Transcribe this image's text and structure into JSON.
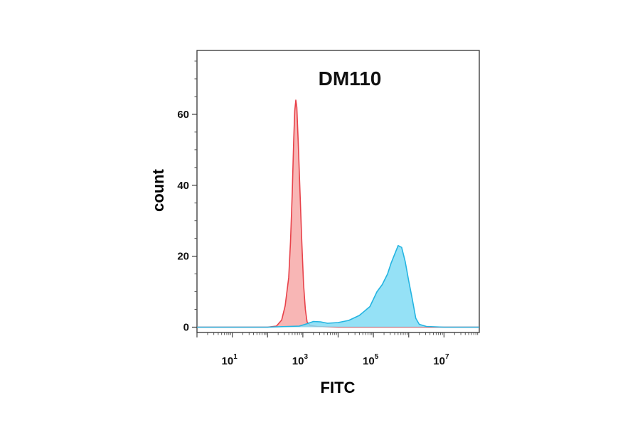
{
  "chart_data": {
    "type": "area",
    "title": "DM110",
    "xlabel": "FITC",
    "ylabel": "count",
    "x_scale": "log",
    "xlim": [
      1,
      100000000
    ],
    "ylim": [
      -1.5,
      78
    ],
    "x_ticks": [
      {
        "base": "10",
        "exp": "1",
        "value": 10
      },
      {
        "base": "10",
        "exp": "3",
        "value": 1000
      },
      {
        "base": "10",
        "exp": "5",
        "value": 100000
      },
      {
        "base": "10",
        "exp": "7",
        "value": 10000000
      }
    ],
    "y_ticks": [
      {
        "label": "0",
        "value": 0
      },
      {
        "label": "20",
        "value": 20
      },
      {
        "label": "40",
        "value": 40
      },
      {
        "label": "60",
        "value": 60
      }
    ],
    "series": [
      {
        "color_fill": "#f7a9a8",
        "color_line": "#e8424a",
        "points": [
          [
            1,
            0
          ],
          [
            10,
            0
          ],
          [
            100,
            0
          ],
          [
            178,
            0.3
          ],
          [
            251,
            2
          ],
          [
            316,
            6
          ],
          [
            398,
            14
          ],
          [
            447,
            24
          ],
          [
            501,
            38
          ],
          [
            548,
            52
          ],
          [
            589,
            61
          ],
          [
            631,
            64
          ],
          [
            676,
            62
          ],
          [
            741,
            52
          ],
          [
            832,
            38
          ],
          [
            933,
            24
          ],
          [
            1047,
            12
          ],
          [
            1175,
            5
          ],
          [
            1318,
            1.5
          ],
          [
            1585,
            0.5
          ],
          [
            2512,
            0.2
          ],
          [
            10000,
            0
          ],
          [
            100000,
            0
          ],
          [
            1000000,
            0
          ],
          [
            10000000,
            0
          ],
          [
            100000000,
            0
          ]
        ]
      },
      {
        "color_fill": "#83dcf4",
        "color_line": "#24b4e1",
        "points": [
          [
            1,
            0
          ],
          [
            10,
            0
          ],
          [
            100,
            0
          ],
          [
            794,
            0.3
          ],
          [
            1259,
            0.9
          ],
          [
            2000,
            1.6
          ],
          [
            3162,
            1.5
          ],
          [
            5012,
            1.1
          ],
          [
            10000,
            1.3
          ],
          [
            20000,
            1.9
          ],
          [
            39811,
            3.3
          ],
          [
            79433,
            5.8
          ],
          [
            125893,
            10
          ],
          [
            177828,
            12
          ],
          [
            251189,
            15
          ],
          [
            316228,
            18
          ],
          [
            398107,
            20.5
          ],
          [
            501187,
            23
          ],
          [
            630957,
            22.5
          ],
          [
            794328,
            18.5
          ],
          [
            1000000,
            13
          ],
          [
            1258925,
            8
          ],
          [
            1584893,
            2.5
          ],
          [
            1995262,
            0.8
          ],
          [
            3162278,
            0.2
          ],
          [
            10000000,
            0
          ],
          [
            100000000,
            0
          ]
        ]
      }
    ]
  }
}
